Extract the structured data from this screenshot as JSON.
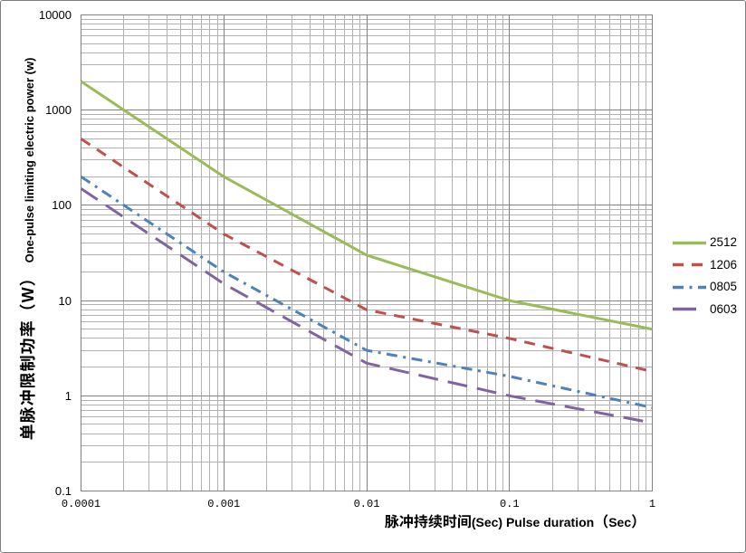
{
  "chart_data": {
    "type": "line",
    "title": "",
    "x_scale": "log",
    "y_scale": "log",
    "xlim": [
      0.0001,
      1
    ],
    "ylim": [
      0.1,
      10000
    ],
    "x": [
      0.0001,
      0.001,
      0.01,
      0.1,
      1
    ],
    "series": [
      {
        "name": "2512",
        "color": "#9BBB59",
        "dash": "solid",
        "values": [
          2000,
          200,
          30,
          10,
          5
        ]
      },
      {
        "name": "1206",
        "color": "#C0504D",
        "dash": "dash",
        "values": [
          500,
          50,
          8,
          4,
          1.8
        ]
      },
      {
        "name": "0805",
        "color": "#4F81BD",
        "dash": "dash-dot",
        "values": [
          200,
          20,
          3,
          1.6,
          0.75
        ]
      },
      {
        "name": "0603",
        "color": "#8064A2",
        "dash": "long-dash",
        "values": [
          150,
          15,
          2.2,
          1,
          0.52
        ]
      }
    ],
    "xlabel": "脉冲持续时间(Sec) Pulse duration（Sec）",
    "ylabel": "单脉冲限制功率（W） One-pulse limiting electric power (w)",
    "x_tick_labels": [
      "0.0001",
      "0.001",
      "0.01",
      "0.1",
      "1"
    ],
    "x_tick_values": [
      0.0001,
      0.001,
      0.01,
      0.1,
      1
    ],
    "y_tick_labels": [
      "10000",
      "1000",
      "100",
      "10",
      "1",
      "0.1"
    ],
    "y_tick_values": [
      10000,
      1000,
      100,
      10,
      1,
      0.1
    ],
    "grid": "log major + minor, both axes",
    "legend_position": "right",
    "colors": {
      "background": "#FFFFFF",
      "frame_border": "#7D7D7D",
      "major_gridline": "#828282",
      "minor_gridline": "#B2B2B2",
      "plot_border": "#828282",
      "text": "#000000"
    }
  },
  "axis_titles": {
    "y_zh": "单脉冲限制功率（W）",
    "y_en": "One-pulse limiting electric power (w)",
    "x_zh": "脉冲持续时间",
    "x_en": "(Sec) Pulse duration",
    "x_paren_open": "（",
    "x_sec": "Sec",
    "x_paren_close": "）"
  },
  "legend": {
    "items": [
      "2512",
      "1206",
      "0805",
      "0603"
    ]
  }
}
